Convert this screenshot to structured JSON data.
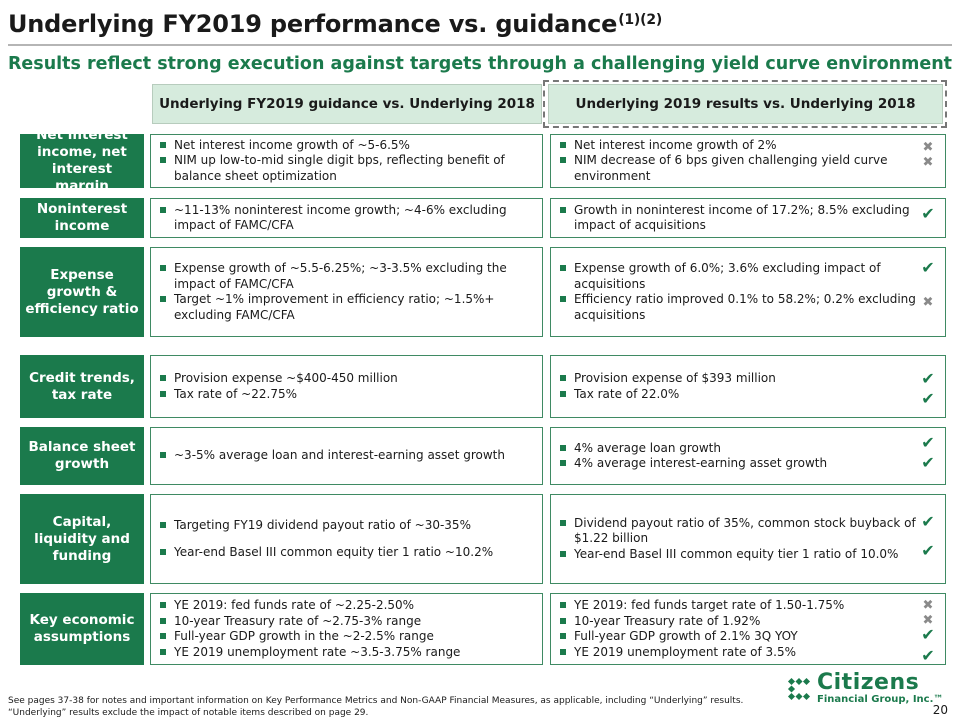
{
  "header": {
    "title": "Underlying FY2019 performance vs. guidance",
    "title_sup": "(1)(2)",
    "subtitle": "Results reflect strong execution against targets through a challenging yield curve environment"
  },
  "columns": {
    "guidance": "Underlying FY2019 guidance vs. Underlying 2018",
    "results": "Underlying 2019 results vs. Underlying 2018"
  },
  "rows": [
    {
      "label": "Net interest income, net interest margin",
      "guidance": [
        "Net interest income growth of ~5-6.5%",
        "NIM up low-to-mid single digit bps, reflecting benefit of balance sheet optimization"
      ],
      "results": [
        "Net interest income growth of 2%",
        "NIM decrease of 6 bps given challenging yield curve environment"
      ],
      "marks": [
        "miss",
        "miss"
      ]
    },
    {
      "label": "Noninterest income",
      "guidance": [
        "~11-13% noninterest income growth; ~4-6% excluding impact of FAMC/CFA"
      ],
      "results": [
        "Growth in noninterest income of 17.2%; 8.5% excluding impact of acquisitions"
      ],
      "marks": [
        "hit"
      ]
    },
    {
      "label": "Expense growth & efficiency ratio",
      "guidance": [
        "Expense growth of ~5.5-6.25%; ~3-3.5% excluding the impact of FAMC/CFA",
        "Target ~1% improvement in efficiency ratio; ~1.5%+ excluding FAMC/CFA"
      ],
      "results": [
        "Expense growth of 6.0%; 3.6% excluding impact of acquisitions",
        "Efficiency ratio improved 0.1% to 58.2%; 0.2% excluding acquisitions"
      ],
      "marks": [
        "hit",
        "miss"
      ]
    },
    {
      "label": "Credit trends, tax rate",
      "guidance": [
        "Provision expense ~$400-450 million",
        "Tax rate of ~22.75%"
      ],
      "results": [
        "Provision expense of $393 million",
        "Tax rate of 22.0%"
      ],
      "marks": [
        "hit",
        "hit"
      ]
    },
    {
      "label": "Balance sheet growth",
      "guidance": [
        "~3-5% average loan and interest-earning asset growth"
      ],
      "results": [
        "4% average loan growth",
        "4% average interest-earning asset growth"
      ],
      "marks": [
        "hit",
        "hit"
      ]
    },
    {
      "label": "Capital, liquidity and funding",
      "guidance": [
        "Targeting FY19 dividend payout ratio of ~30-35%",
        "Year-end Basel III common equity tier 1 ratio ~10.2%"
      ],
      "results": [
        "Dividend payout ratio of 35%, common stock buyback of $1.22 billion",
        "Year-end Basel III common equity tier 1 ratio of 10.0%"
      ],
      "marks": [
        "hit",
        "hit"
      ]
    },
    {
      "label": "Key economic assumptions",
      "guidance": [
        "YE 2019: fed funds rate of ~2.25-2.50%",
        "10-year Treasury rate of ~2.75-3% range",
        "Full-year GDP growth in the ~2-2.5% range",
        "YE 2019 unemployment rate ~3.5-3.75% range"
      ],
      "results": [
        "YE 2019: fed funds target rate of 1.50-1.75%",
        "10-year Treasury rate of 1.92%",
        "Full-year GDP growth of 2.1% 3Q YOY",
        "YE 2019 unemployment rate of 3.5%"
      ],
      "marks": [
        "miss",
        "miss",
        "hit",
        "hit"
      ]
    }
  ],
  "icons": {
    "hit": "check-icon",
    "miss": "x-icon"
  },
  "colors": {
    "brand_green": "#1b7a4c",
    "header_fill": "#d6ebdd",
    "miss_grey": "#8a8a8a"
  },
  "footnote": "See pages 37-38 for notes and important information on Key Performance Metrics and Non-GAAP Financial Measures, as applicable, including “Underlying” results. “Underlying” results exclude the impact of notable items described on page 29.",
  "logo": {
    "name": "Citizens",
    "sub": "Financial Group, Inc.™"
  },
  "page_number": "20"
}
